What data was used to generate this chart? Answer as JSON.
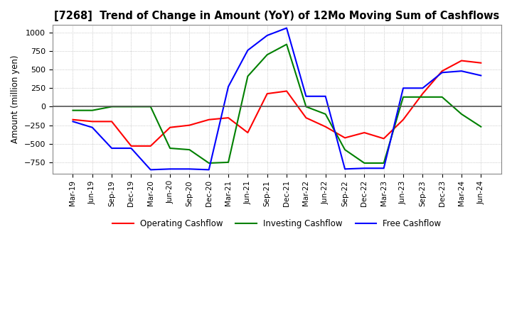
{
  "title": "[7268]  Trend of Change in Amount (YoY) of 12Mo Moving Sum of Cashflows",
  "ylabel": "Amount (million yen)",
  "ylim": [
    -900,
    1100
  ],
  "yticks": [
    -750,
    -500,
    -250,
    0,
    250,
    500,
    750,
    1000
  ],
  "background_color": "#ffffff",
  "grid_color": "#aaaaaa",
  "x_labels": [
    "Mar-19",
    "Jun-19",
    "Sep-19",
    "Dec-19",
    "Mar-20",
    "Jun-20",
    "Sep-20",
    "Dec-20",
    "Mar-21",
    "Jun-21",
    "Sep-21",
    "Dec-21",
    "Mar-22",
    "Jun-22",
    "Sep-22",
    "Dec-22",
    "Mar-23",
    "Jun-23",
    "Sep-23",
    "Dec-23",
    "Mar-24",
    "Jun-24"
  ],
  "operating": [
    -175,
    -200,
    -200,
    -530,
    -530,
    -280,
    -250,
    -175,
    -150,
    -350,
    175,
    210,
    -150,
    -270,
    -420,
    -350,
    -430,
    -175,
    175,
    480,
    620,
    590
  ],
  "investing": [
    -50,
    -50,
    0,
    0,
    0,
    -560,
    -580,
    -760,
    -750,
    410,
    700,
    840,
    0,
    -100,
    -580,
    -760,
    -760,
    130,
    130,
    130,
    -100,
    -270
  ],
  "free": [
    -200,
    -280,
    -560,
    -560,
    -850,
    -840,
    -840,
    -850,
    270,
    760,
    960,
    1060,
    140,
    140,
    -840,
    -830,
    -830,
    250,
    250,
    460,
    480,
    420
  ],
  "op_color": "#ff0000",
  "inv_color": "#008000",
  "free_color": "#0000ff",
  "legend_labels": [
    "Operating Cashflow",
    "Investing Cashflow",
    "Free Cashflow"
  ]
}
